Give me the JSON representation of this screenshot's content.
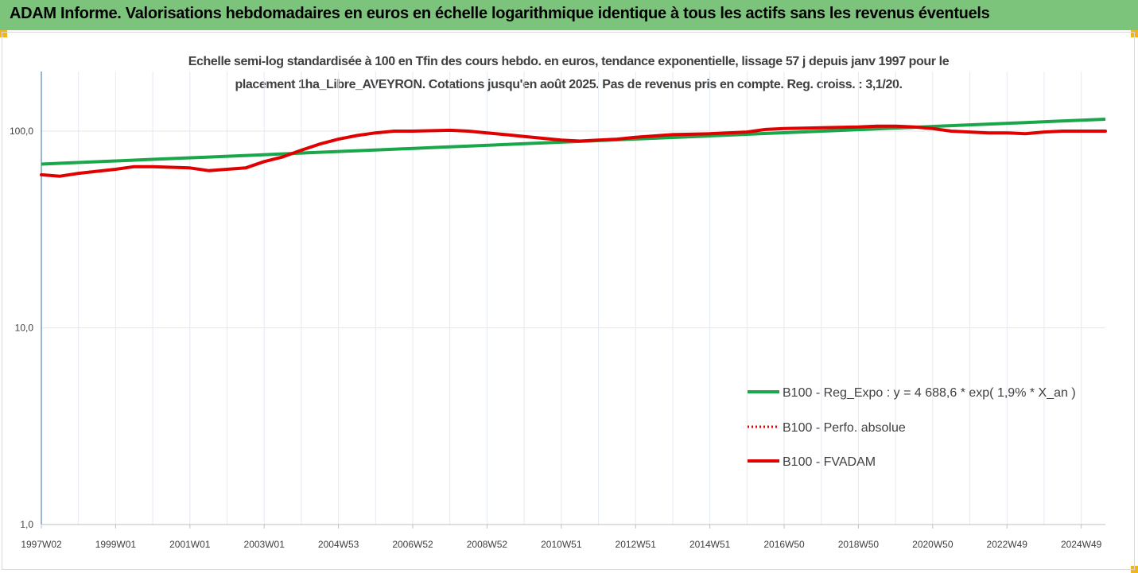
{
  "header": {
    "title": "ADAM Informe. Valorisations hebdomadaires en euros en échelle logarithmique identique à tous les actifs sans les revenus éventuels"
  },
  "colors": {
    "header_bg": "#7cc47c",
    "trend": "#1aa64a",
    "perf": "#e00000",
    "fvadam": "#e00000",
    "corner": "#f2b51a"
  },
  "chart_data": {
    "type": "line",
    "title_lines": [
      "Echelle semi-log standardisée à 100 en Tfin des cours hebdo. en euros, tendance exponentielle, lissage 57 j depuis janv 1997 pour le",
      "placement 1ha_Libre_AVEYRON. Cotations jusqu'en août 2025.  Pas de revenus pris en compte. Reg. croiss. : 3,1/20."
    ],
    "y_scale": "log",
    "ylim": [
      1,
      200
    ],
    "y_ticks": [
      {
        "value": 1,
        "label": "1,0"
      },
      {
        "value": 10,
        "label": "10,0"
      },
      {
        "value": 100,
        "label": "100,0"
      }
    ],
    "xlim": [
      1997.0,
      2025.65
    ],
    "x_ticks": [
      {
        "value": 1997.0,
        "label": "1997W02"
      },
      {
        "value": 1999.0,
        "label": "1999W01"
      },
      {
        "value": 2001.0,
        "label": "2001W01"
      },
      {
        "value": 2003.0,
        "label": "2003W01"
      },
      {
        "value": 2005.0,
        "label": "2004W53"
      },
      {
        "value": 2007.0,
        "label": "2006W52"
      },
      {
        "value": 2009.0,
        "label": "2008W52"
      },
      {
        "value": 2011.0,
        "label": "2010W51"
      },
      {
        "value": 2013.0,
        "label": "2012W51"
      },
      {
        "value": 2015.0,
        "label": "2014W51"
      },
      {
        "value": 2017.0,
        "label": "2016W50"
      },
      {
        "value": 2019.0,
        "label": "2018W50"
      },
      {
        "value": 2021.0,
        "label": "2020W50"
      },
      {
        "value": 2023.0,
        "label": "2022W49"
      },
      {
        "value": 2025.0,
        "label": "2024W49"
      }
    ],
    "grid": "vertical",
    "legend_position": "right",
    "series": [
      {
        "name": "B100 - Reg_Expo : y = 4 688,6 * exp( 1,9% *  X_an )",
        "style": "solid",
        "x": [
          1997.0,
          2025.65
        ],
        "y": [
          68,
          115
        ]
      },
      {
        "name": "B100 - Perfo. absolue",
        "style": "dotted",
        "x": [
          1997.0,
          1997.5,
          1998.0,
          1999.0,
          1999.5,
          2000.0,
          2001.0,
          2001.5,
          2002.0,
          2002.5,
          2003.0,
          2003.5,
          2004.0,
          2004.5,
          2005.0,
          2005.5,
          2006.0,
          2006.5,
          2007.0,
          2008.0,
          2008.5,
          2009.0,
          2009.5,
          2010.0,
          2010.5,
          2011.0,
          2011.5,
          2012.0,
          2012.5,
          2013.0,
          2014.0,
          2015.0,
          2016.0,
          2016.5,
          2017.0,
          2018.0,
          2019.0,
          2019.5,
          2020.0,
          2020.5,
          2021.0,
          2021.5,
          2022.0,
          2022.5,
          2023.0,
          2023.5,
          2024.0,
          2024.5,
          2025.0,
          2025.65
        ],
        "y": [
          60,
          59,
          61,
          64,
          66,
          66,
          65,
          63,
          64,
          65,
          70,
          74,
          80,
          86,
          91,
          95,
          98,
          100,
          100,
          101,
          100,
          98,
          96,
          94,
          92,
          90,
          89,
          90,
          91,
          93,
          96,
          97,
          99,
          102,
          103,
          104,
          105,
          106,
          106,
          105,
          103,
          100,
          99,
          98,
          98,
          97,
          99,
          100,
          100,
          100
        ]
      },
      {
        "name": "B100 - FVADAM",
        "style": "solid",
        "x": [
          1997.0,
          1997.5,
          1998.0,
          1999.0,
          1999.5,
          2000.0,
          2001.0,
          2001.5,
          2002.0,
          2002.5,
          2003.0,
          2003.5,
          2004.0,
          2004.5,
          2005.0,
          2005.5,
          2006.0,
          2006.5,
          2007.0,
          2008.0,
          2008.5,
          2009.0,
          2009.5,
          2010.0,
          2010.5,
          2011.0,
          2011.5,
          2012.0,
          2012.5,
          2013.0,
          2014.0,
          2015.0,
          2016.0,
          2016.5,
          2017.0,
          2018.0,
          2019.0,
          2019.5,
          2020.0,
          2020.5,
          2021.0,
          2021.5,
          2022.0,
          2022.5,
          2023.0,
          2023.5,
          2024.0,
          2024.5,
          2025.0,
          2025.65
        ],
        "y": [
          60,
          59,
          61,
          64,
          66,
          66,
          65,
          63,
          64,
          65,
          70,
          74,
          80,
          86,
          91,
          95,
          98,
          100,
          100,
          101,
          100,
          98,
          96,
          94,
          92,
          90,
          89,
          90,
          91,
          93,
          96,
          97,
          99,
          102,
          103,
          104,
          105,
          106,
          106,
          105,
          103,
          100,
          99,
          98,
          98,
          97,
          99,
          100,
          100,
          100
        ]
      }
    ]
  }
}
